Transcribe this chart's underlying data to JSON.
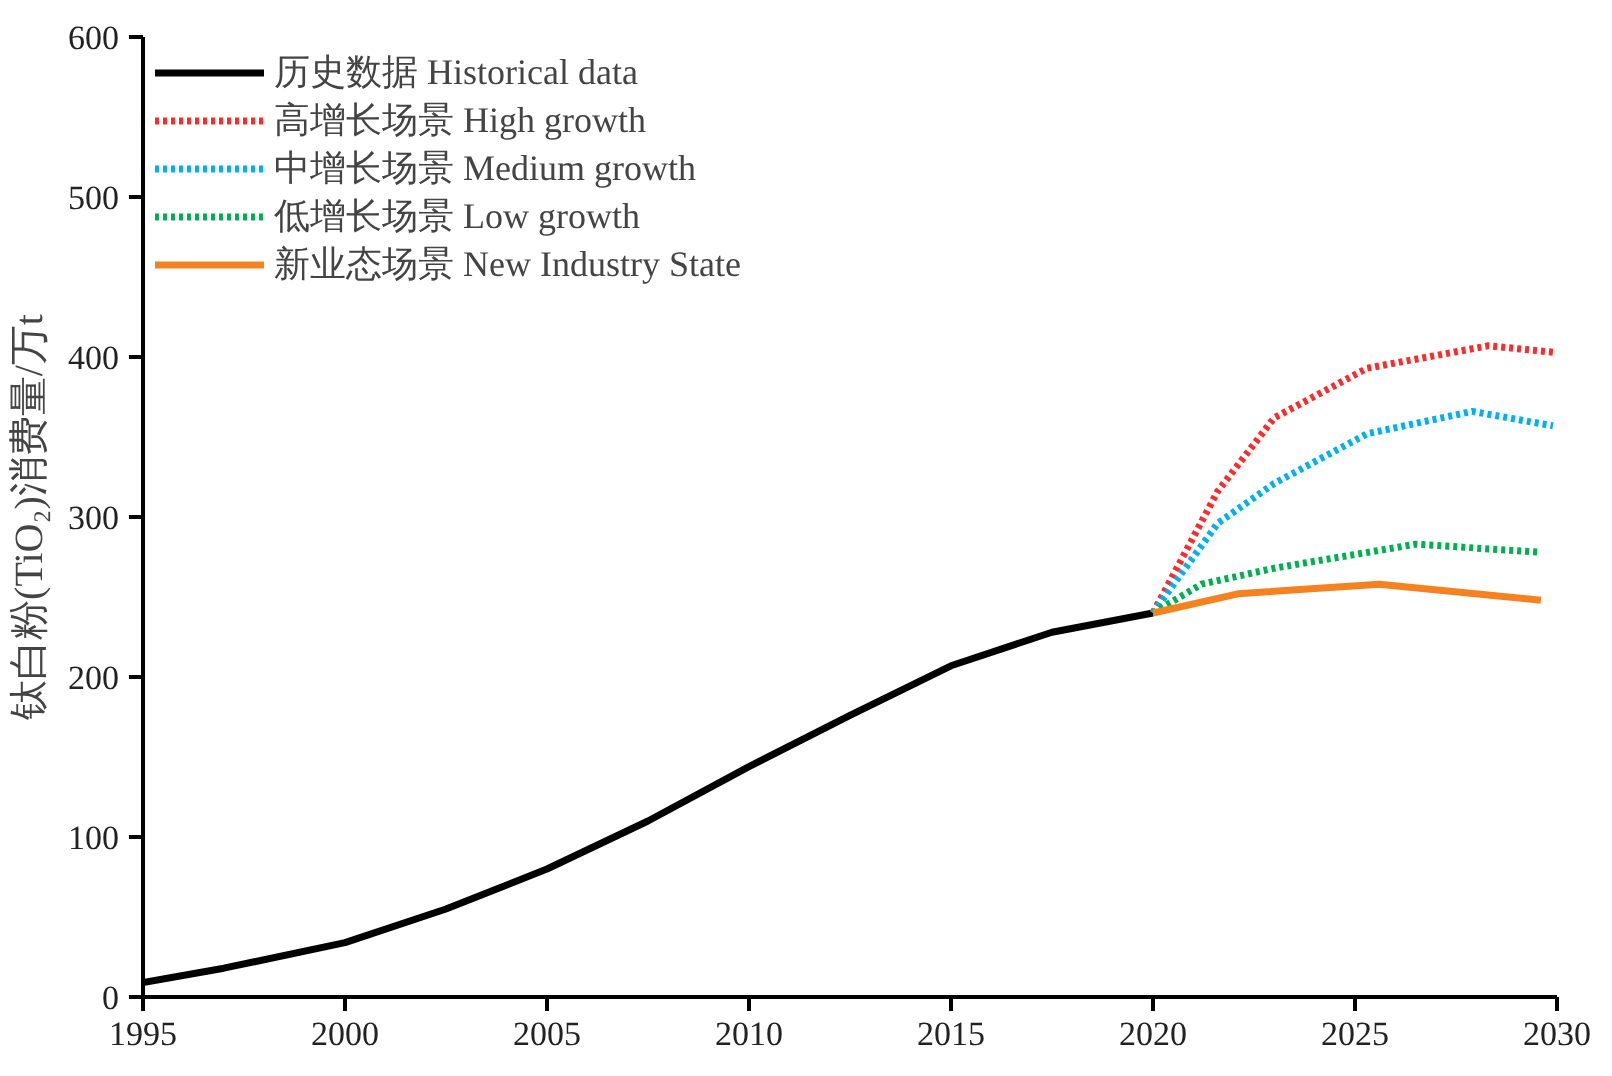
{
  "chart_data": {
    "type": "line",
    "ylabel": "钛白粉(TiO₂)消费量/万t",
    "xlim": [
      1995,
      2030
    ],
    "ylim": [
      0,
      600
    ],
    "xticks": [
      1995,
      2000,
      2005,
      2010,
      2015,
      2020,
      2025,
      2030
    ],
    "yticks": [
      0,
      100,
      200,
      300,
      400,
      500,
      600
    ],
    "grid": false,
    "legend": "top left",
    "marker": "none",
    "series": [
      {
        "name": "历史数据 Historical data",
        "color": "#000000",
        "line_style": "solid",
        "x": [
          1995,
          1997,
          2000,
          2002.5,
          2005,
          2007.5,
          2010,
          2012.5,
          2015,
          2017.5,
          2020
        ],
        "values": [
          9,
          18,
          34,
          55,
          80,
          110,
          144,
          176,
          207,
          228,
          240
        ]
      },
      {
        "name": "高增长场景 High growth",
        "color": "#ff2a2a",
        "line_style": "dotted",
        "x": [
          2020,
          2021.6,
          2023,
          2025.3,
          2028.3,
          2029.9
        ],
        "values": [
          240,
          316,
          362,
          393,
          407,
          403
        ]
      },
      {
        "name": "中增长场景 Medium growth",
        "color": "#00b0f0",
        "line_style": "dotted",
        "x": [
          2020,
          2021.6,
          2023,
          2025.3,
          2027.9,
          2029.9
        ],
        "values": [
          240,
          296,
          321,
          352,
          366,
          357
        ]
      },
      {
        "name": "低增长场景 Low growth",
        "color": "#00b050",
        "line_style": "dotted",
        "x": [
          2020,
          2021.2,
          2023,
          2026.5,
          2029.6
        ],
        "values": [
          240,
          258,
          268,
          283,
          278
        ]
      },
      {
        "name": "新业态场景 New Industry State",
        "color": "#f58220",
        "line_style": "solid",
        "x": [
          2020,
          2022.1,
          2025.6,
          2029.6
        ],
        "values": [
          240,
          252,
          258,
          248
        ]
      }
    ]
  }
}
